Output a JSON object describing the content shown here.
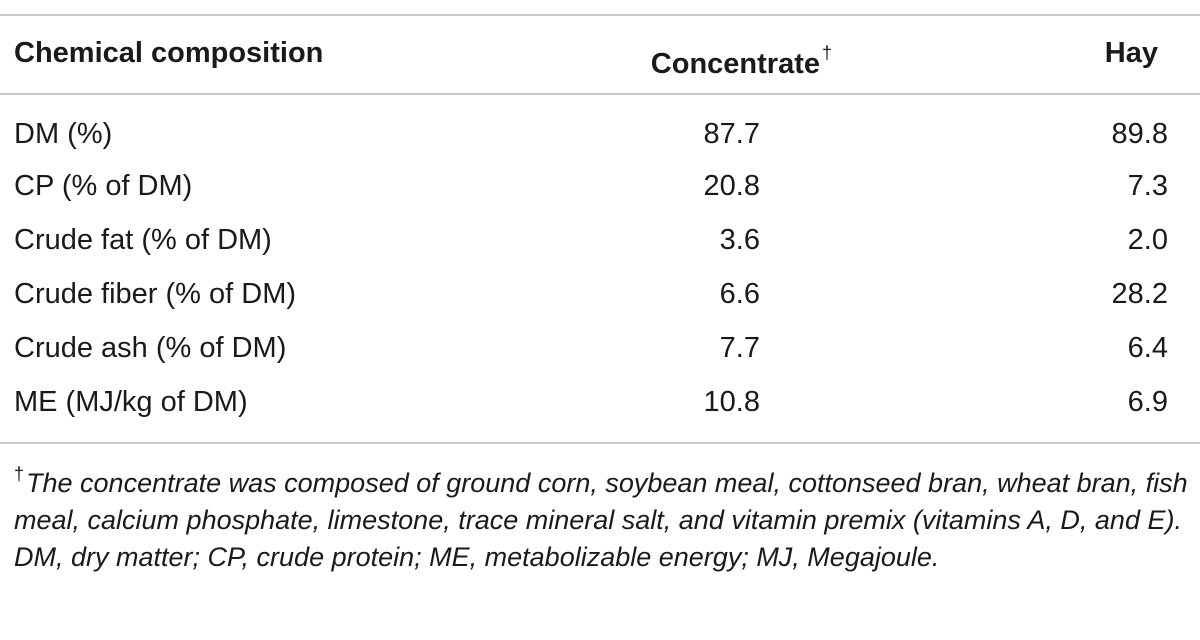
{
  "table": {
    "headers": {
      "composition": "Chemical composition",
      "concentrate": "Concentrate",
      "concentrate_mark": "†",
      "hay": "Hay"
    },
    "rows": [
      {
        "label": "DM (%)",
        "concentrate": "87.7",
        "hay": "89.8"
      },
      {
        "label": "CP (% of DM)",
        "concentrate": "20.8",
        "hay": "7.3"
      },
      {
        "label": "Crude fat (% of DM)",
        "concentrate": "3.6",
        "hay": "2.0"
      },
      {
        "label": "Crude fiber (% of DM)",
        "concentrate": "6.6",
        "hay": "28.2"
      },
      {
        "label": "Crude ash (% of DM)",
        "concentrate": "7.7",
        "hay": "6.4"
      },
      {
        "label": "ME (MJ/kg of DM)",
        "concentrate": "10.8",
        "hay": "6.9"
      }
    ],
    "footnote": {
      "mark": "†",
      "text": "The concentrate was composed of ground corn, soybean meal, cottonseed bran, wheat bran, fish meal, calcium phosphate, limestone, trace mineral salt, and vitamin premix (vitamins A, D, and E). DM, dry matter; CP, crude protein; ME, metabolizable energy; MJ, Megajoule."
    }
  }
}
